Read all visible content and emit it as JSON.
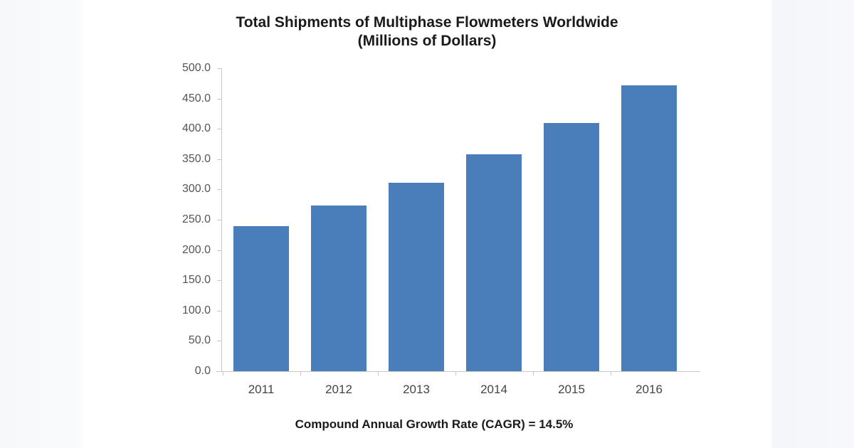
{
  "chart_data": {
    "type": "bar",
    "title": "Total Shipments of Multiphase Flowmeters Worldwide",
    "subtitle": "(Millions of Dollars)",
    "categories": [
      "2011",
      "2012",
      "2013",
      "2014",
      "2015",
      "2016"
    ],
    "values": [
      240,
      273,
      311,
      358,
      410,
      472
    ],
    "xlabel": "",
    "ylabel": "",
    "ylim": [
      0,
      500
    ],
    "yticks": [
      "0.0",
      "50.0",
      "100.0",
      "150.0",
      "200.0",
      "250.0",
      "300.0",
      "350.0",
      "400.0",
      "450.0",
      "500.0"
    ],
    "grid": false,
    "legend": null,
    "bar_color": "#4a7ebb",
    "annotation": "Compound Annual Growth Rate (CAGR) = 14.5%"
  },
  "header": {
    "title": "Total Shipments of Multiphase Flowmeters Worldwide",
    "subtitle": "(Millions of Dollars)"
  },
  "footer": {
    "cagr": "Compound Annual Growth Rate (CAGR) = 14.5%"
  }
}
